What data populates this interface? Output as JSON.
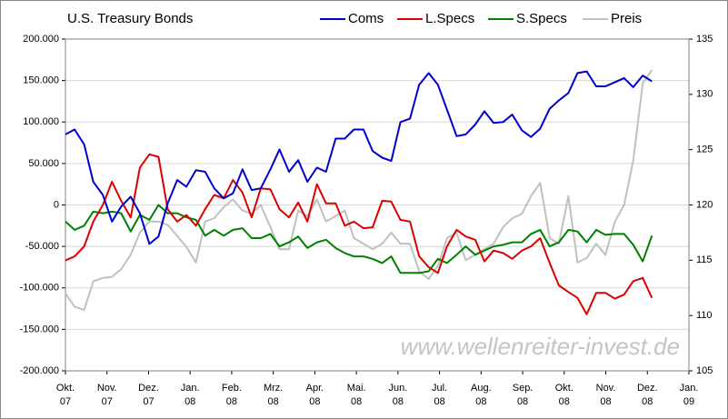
{
  "chart_data": {
    "type": "line",
    "title": "U.S. Treasury Bonds",
    "watermark": "www.wellenreiter-invest.de",
    "x": [
      0,
      0.22,
      0.45,
      0.67,
      0.9,
      1.12,
      1.34,
      1.57,
      1.79,
      2.02,
      2.24,
      2.46,
      2.69,
      2.91,
      3.14,
      3.36,
      3.58,
      3.81,
      4.03,
      4.26,
      4.48,
      4.7,
      4.93,
      5.15,
      5.38,
      5.6,
      5.82,
      6.05,
      6.27,
      6.5,
      6.72,
      6.94,
      7.17,
      7.39,
      7.62,
      7.84,
      8.06,
      8.29,
      8.51,
      8.74,
      8.96,
      9.18,
      9.41,
      9.63,
      9.86,
      10.08,
      10.3,
      10.53,
      10.75,
      10.98,
      11.2,
      11.42,
      11.65,
      11.87,
      12.1,
      12.32,
      12.54,
      12.77,
      12.99,
      13.22,
      13.44,
      13.66,
      13.89,
      14.11
    ],
    "xlim": [
      0,
      15
    ],
    "xticks": [
      {
        "value": 0,
        "label": "Okt. 07"
      },
      {
        "value": 1,
        "label": "Nov. 07"
      },
      {
        "value": 2,
        "label": "Dez. 07"
      },
      {
        "value": 3,
        "label": "Jan. 08"
      },
      {
        "value": 4,
        "label": "Feb. 08"
      },
      {
        "value": 5,
        "label": "Mrz. 08"
      },
      {
        "value": 6,
        "label": "Apr. 08"
      },
      {
        "value": 7,
        "label": "Mai. 08"
      },
      {
        "value": 8,
        "label": "Jun. 08"
      },
      {
        "value": 9,
        "label": "Jul. 08"
      },
      {
        "value": 10,
        "label": "Aug. 08"
      },
      {
        "value": 11,
        "label": "Sep. 08"
      },
      {
        "value": 12,
        "label": "Okt. 08"
      },
      {
        "value": 13,
        "label": "Nov. 08"
      },
      {
        "value": 14,
        "label": "Dez. 08"
      },
      {
        "value": 15,
        "label": "Jan. 09"
      }
    ],
    "ylim": [
      -200000,
      200000
    ],
    "yticks": [
      {
        "value": 200000,
        "label": "200.000"
      },
      {
        "value": 150000,
        "label": "150.000"
      },
      {
        "value": 100000,
        "label": "100.000"
      },
      {
        "value": 50000,
        "label": "50.000"
      },
      0,
      {
        "value": -50000,
        "label": "-50.000"
      },
      {
        "value": -100000,
        "label": "-100.000"
      },
      {
        "value": -150000,
        "label": "-150.000"
      },
      {
        "value": -200000,
        "label": "-200.000"
      }
    ],
    "y2lim": [
      105,
      135
    ],
    "y2ticks": [
      105,
      110,
      115,
      120,
      125,
      130,
      135
    ],
    "grid": true,
    "series": [
      {
        "name": "Coms",
        "color": "#0000cc",
        "values": [
          85000,
          91000,
          73000,
          28000,
          12000,
          -20000,
          -2000,
          10000,
          -10000,
          -47000,
          -38000,
          2000,
          30000,
          22000,
          42000,
          40000,
          20000,
          8000,
          14000,
          43000,
          18000,
          20000,
          43000,
          67000,
          40000,
          54000,
          28000,
          45000,
          40000,
          80000,
          80000,
          91000,
          91000,
          65000,
          57000,
          53000,
          100000,
          104000,
          145000,
          159000,
          145000,
          115000,
          83000,
          85000,
          97000,
          113000,
          99000,
          100000,
          109000,
          90000,
          82000,
          92000,
          116000,
          126000,
          135000,
          159000,
          161000,
          143000,
          143000,
          148000,
          153000,
          142000,
          156000,
          149000
        ]
      },
      {
        "name": "L.Specs",
        "color": "#dd0000",
        "values": [
          -67000,
          -62000,
          -50000,
          -20000,
          0,
          28000,
          5000,
          -15000,
          45000,
          61000,
          58000,
          -5000,
          -20000,
          -12000,
          -25000,
          -5000,
          12000,
          8000,
          30000,
          15000,
          -15000,
          20000,
          19000,
          -5000,
          -15000,
          3000,
          -20000,
          25000,
          2000,
          2000,
          -25000,
          -20000,
          -28000,
          -27000,
          5000,
          4000,
          -18000,
          -20000,
          -62000,
          -75000,
          -82000,
          -50000,
          -30000,
          -38000,
          -42000,
          -68000,
          -55000,
          -58000,
          -65000,
          -55000,
          -50000,
          -40000,
          -70000,
          -97000,
          -105000,
          -112000,
          -132000,
          -106000,
          -106000,
          -113000,
          -108000,
          -92000,
          -88000,
          -112000
        ]
      },
      {
        "name": "S.Specs",
        "color": "#008000",
        "values": [
          -20000,
          -30000,
          -25000,
          -8000,
          -10000,
          -8000,
          -10000,
          -32000,
          -12000,
          -18000,
          0,
          -10000,
          -10000,
          -15000,
          -18000,
          -37000,
          -30000,
          -37000,
          -30000,
          -28000,
          -40000,
          -40000,
          -35000,
          -50000,
          -45000,
          -38000,
          -52000,
          -45000,
          -42000,
          -52000,
          -58000,
          -62000,
          -62000,
          -65000,
          -70000,
          -62000,
          -82000,
          -82000,
          -82000,
          -80000,
          -65000,
          -70000,
          -60000,
          -50000,
          -60000,
          -55000,
          -50000,
          -48000,
          -45000,
          -45000,
          -35000,
          -30000,
          -50000,
          -45000,
          -30000,
          -32000,
          -45000,
          -30000,
          -36000,
          -35000,
          -35000,
          -48000,
          -68000,
          -37000
        ]
      },
      {
        "name": "Preis",
        "color": "#c0c0c0",
        "axis": "y2",
        "values": [
          112,
          110.8,
          110.5,
          113.1,
          113.4,
          113.5,
          114.2,
          115.5,
          117.5,
          118.5,
          118.5,
          118.2,
          117.2,
          116.2,
          114.8,
          118.5,
          118.8,
          119.8,
          120.5,
          119.5,
          119.2,
          120,
          118,
          116,
          116,
          119.5,
          119,
          120.5,
          118.5,
          119,
          119.5,
          117,
          116.5,
          116,
          116.5,
          117.5,
          116.5,
          116.5,
          114,
          113.3,
          114.5,
          117,
          117.5,
          115,
          115.5,
          116,
          116.5,
          118,
          118.8,
          119.2,
          120.8,
          122,
          117,
          116.5,
          120.8,
          114.8,
          115.2,
          116.5,
          115.5,
          118.5,
          120,
          124,
          131,
          132.2
        ]
      }
    ]
  }
}
